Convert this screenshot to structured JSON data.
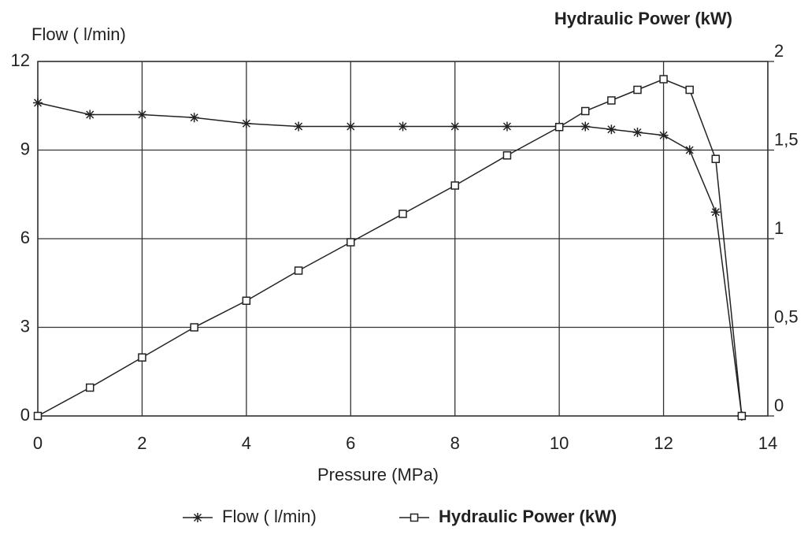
{
  "chart_data": {
    "type": "line",
    "y_label": "Flow ( l/min)",
    "y2_label": "Hydraulic Power  (kW)",
    "x_label": "Pressure (MPa)",
    "x": [
      0,
      1,
      2,
      3,
      4,
      5,
      6,
      7,
      8,
      9,
      10,
      10.5,
      11,
      11.5,
      12,
      12.5,
      13,
      13.5
    ],
    "series": [
      {
        "name": "Flow ( l/min)",
        "color": "#222222",
        "marker": "asterisk",
        "values": [
          10.6,
          10.2,
          10.2,
          10.1,
          9.9,
          9.8,
          9.8,
          9.8,
          9.8,
          9.8,
          9.8,
          9.8,
          9.7,
          9.6,
          9.5,
          9.0,
          6.9,
          0
        ]
      },
      {
        "name": "Hydraulic Power  (kW)",
        "color": "#222222",
        "marker": "square",
        "axis": "y2",
        "values": [
          0,
          0.16,
          0.33,
          0.5,
          0.65,
          0.82,
          0.98,
          1.14,
          1.3,
          1.47,
          1.63,
          1.72,
          1.78,
          1.84,
          1.9,
          1.84,
          1.45,
          0
        ]
      }
    ],
    "xlim": [
      0,
      14
    ],
    "xticks": [
      0,
      2,
      4,
      6,
      8,
      10,
      12,
      14
    ],
    "ylim": [
      0,
      12
    ],
    "yticks": [
      0,
      3,
      6,
      9,
      12
    ],
    "y2lim": [
      0,
      2
    ],
    "y2ticks": [
      0,
      {
        "value": 0.5,
        "label": "0,5"
      },
      1,
      {
        "value": 1.5,
        "label": "1,5"
      },
      2
    ],
    "grid": true,
    "legend": "bottom"
  }
}
